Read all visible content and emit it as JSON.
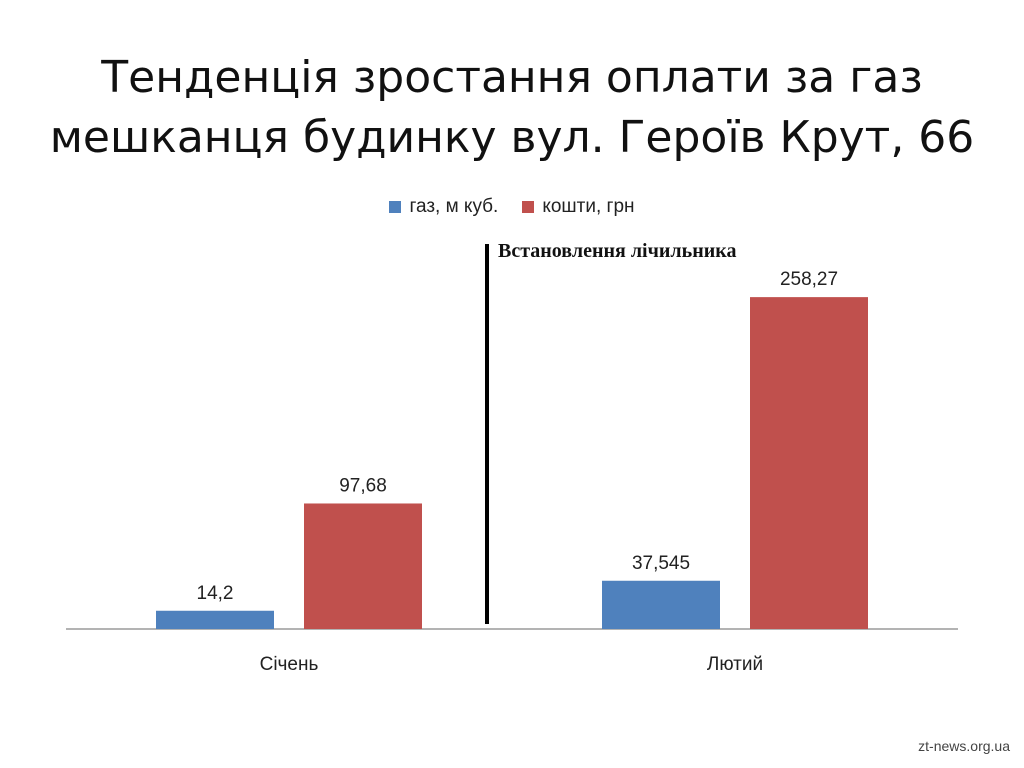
{
  "colors": {
    "gas": "#4f81bd",
    "money": "#c0504d",
    "axis": "#9a9a9a",
    "divider": "#000000",
    "text": "#222222"
  },
  "slide": {
    "title_line1": "Тенденція зростання оплати за газ",
    "title_line2": "мешканця будинку вул. Героїв Крут, 66",
    "watermark": "zt-news.org.ua"
  },
  "chart_data": {
    "type": "bar",
    "title": "Тенденція зростання оплати за газ мешканця будинку вул. Героїв Крут, 66",
    "categories": [
      "Січень",
      "Лютий"
    ],
    "series": [
      {
        "name": "газ, м куб.",
        "values": [
          14.2,
          37.545
        ],
        "labels": [
          "14,2",
          "37,545"
        ]
      },
      {
        "name": "кошти, грн",
        "values": [
          97.68,
          258.27
        ],
        "labels": [
          "97,68",
          "258,27"
        ]
      }
    ],
    "annotation": "Встановлення лічильника",
    "legend_position": "top",
    "grid": false,
    "ylim": [
      0,
      300
    ]
  }
}
